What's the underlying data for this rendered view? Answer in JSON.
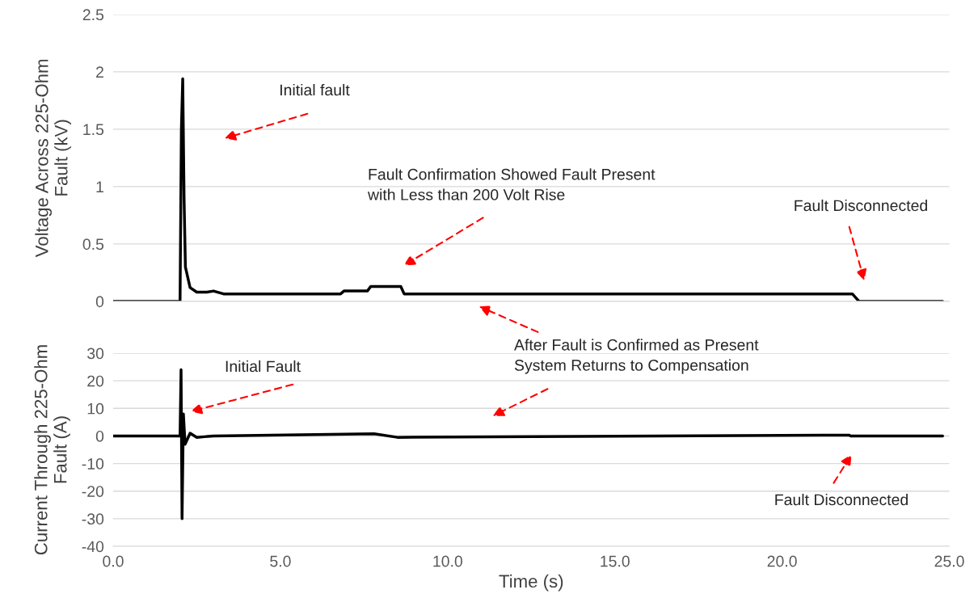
{
  "chart_data": [
    {
      "type": "line",
      "ylabel": "Voltage Across 225-Ohm\nFault (kV)",
      "xlim": [
        0,
        25
      ],
      "ylim": [
        0,
        2.5
      ],
      "yticks": [
        0,
        {
          "value": 0.5,
          "label": "0.5"
        },
        1,
        {
          "value": 1.5,
          "label": "1.5"
        },
        2,
        {
          "value": 2.5,
          "label": "2.5"
        }
      ],
      "tick_labels": "y",
      "grid": "y",
      "legend": false,
      "series": [
        {
          "color": "#000000",
          "x": [
            0,
            2.0,
            2.04,
            2.08,
            2.12,
            2.16,
            2.3,
            2.5,
            2.8,
            3.0,
            3.3,
            6.8,
            6.9,
            7.6,
            7.7,
            8.6,
            8.7,
            22.1,
            22.3,
            24.8
          ],
          "values": [
            0,
            0,
            1.5,
            1.94,
            0.9,
            0.3,
            0.12,
            0.08,
            0.08,
            0.09,
            0.065,
            0.065,
            0.09,
            0.09,
            0.13,
            0.13,
            0.065,
            0.065,
            0,
            0
          ]
        }
      ],
      "annotations": [
        "Initial fault",
        "Fault Confirmation Showed Fault Present\nwith Less than 200 Volt Rise",
        "Fault Disconnected"
      ]
    },
    {
      "type": "line",
      "xlabel": "Time (s)",
      "ylabel": "Current Through 225-Ohm\nFault (A)",
      "xlim": [
        0,
        25
      ],
      "xticks": [
        {
          "value": 0,
          "label": "0.0"
        },
        {
          "value": 5,
          "label": "5.0"
        },
        {
          "value": 10,
          "label": "10.0"
        },
        {
          "value": 15,
          "label": "15.0"
        },
        {
          "value": 20,
          "label": "20.0"
        },
        {
          "value": 25,
          "label": "25.0"
        }
      ],
      "ylim": [
        -40,
        30
      ],
      "yticks": [
        -40,
        -30,
        -20,
        -10,
        0,
        10,
        20,
        30
      ],
      "grid": "y",
      "legend": false,
      "series": [
        {
          "color": "#000000",
          "x": [
            0,
            2.0,
            2.03,
            2.06,
            2.1,
            2.15,
            2.3,
            2.5,
            3.0,
            7.8,
            8.5,
            22.0,
            22.05,
            24.8
          ],
          "values": [
            0,
            0,
            24,
            -30,
            8,
            -3,
            1,
            -0.5,
            0,
            0.8,
            -0.5,
            0.3,
            0,
            0
          ]
        }
      ],
      "annotations": [
        "Initial Fault",
        "After Fault is Confirmed as Present\nSystem Returns to Compensation",
        "Fault Disconnected"
      ]
    }
  ]
}
